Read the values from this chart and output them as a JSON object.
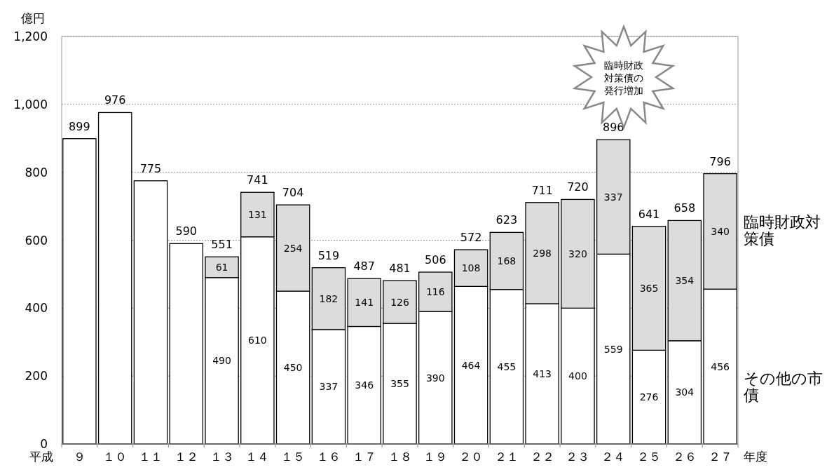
{
  "chart_data": {
    "type": "bar",
    "stacked": true,
    "ylabel": "億円",
    "xlabel": "年度",
    "categories": [
      "９",
      "１０",
      "１１",
      "１２",
      "１３",
      "１４",
      "１５",
      "１６",
      "１７",
      "１８",
      "１９",
      "２０",
      "２１",
      "２２",
      "２３",
      "２４",
      "２５",
      "２６",
      "２７"
    ],
    "series": [
      {
        "name": "その他の市債",
        "color": "#ffffff",
        "values": [
          899,
          976,
          775,
          590,
          490,
          610,
          450,
          337,
          346,
          355,
          390,
          464,
          455,
          413,
          400,
          559,
          276,
          304,
          456
        ],
        "value_labels": [
          null,
          null,
          null,
          null,
          "490",
          "610",
          "450",
          "337",
          "346",
          "355",
          "390",
          "464",
          "455",
          "413",
          "400",
          "559",
          "276",
          "304",
          "456"
        ]
      },
      {
        "name": "臨時財政対策債",
        "color": "#dcdcdc",
        "values": [
          null,
          null,
          null,
          null,
          61,
          131,
          254,
          182,
          141,
          126,
          116,
          108,
          168,
          298,
          320,
          337,
          365,
          354,
          340
        ],
        "value_labels": [
          null,
          null,
          null,
          null,
          "61",
          "131",
          "254",
          "182",
          "141",
          "126",
          "116",
          "108",
          "168",
          "298",
          "320",
          "337",
          "365",
          "354",
          "340"
        ]
      }
    ],
    "totals": [
      "899",
      "976",
      "775",
      "590",
      "551",
      "741",
      "704",
      "519",
      "487",
      "481",
      "506",
      "572",
      "623",
      "711",
      "720",
      "896",
      "641",
      "658",
      "796"
    ],
    "ylim": [
      0,
      1200
    ],
    "yticks": [
      0,
      200,
      400,
      600,
      800,
      {
        "value": 1000,
        "label": "1,000"
      },
      {
        "value": 1200,
        "label": "1,200"
      }
    ],
    "grid": "y",
    "legend": "right",
    "annotations": [
      "平成",
      "臨時財政対策債の発行増加"
    ]
  }
}
